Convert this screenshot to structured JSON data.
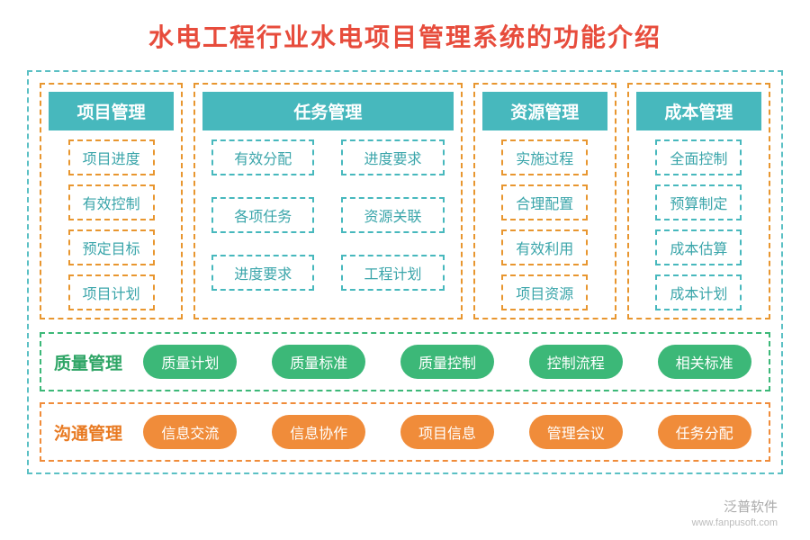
{
  "title": "水电工程行业水电项目管理系统的功能介绍",
  "title_color": "#e74c3c",
  "outer_border_color": "#5bc0c4",
  "columns": [
    {
      "header": "项目管理",
      "border_color": "#e8962f",
      "header_bg": "#47b8bd",
      "item_border": "#e8962f",
      "item_color": "#3aa5aa",
      "width": "narrow",
      "layout": "list",
      "items": [
        "项目进度",
        "有效控制",
        "预定目标",
        "项目计划"
      ]
    },
    {
      "header": "任务管理",
      "border_color": "#e8962f",
      "header_bg": "#47b8bd",
      "item_border": "#47b8bd",
      "item_color": "#3aa5aa",
      "width": "wide",
      "layout": "grid",
      "items": [
        "有效分配",
        "进度要求",
        "各项任务",
        "资源关联",
        "进度要求",
        "工程计划"
      ]
    },
    {
      "header": "资源管理",
      "border_color": "#e8962f",
      "header_bg": "#47b8bd",
      "item_border": "#e8962f",
      "item_color": "#3aa5aa",
      "width": "narrow",
      "layout": "list",
      "items": [
        "实施过程",
        "合理配置",
        "有效利用",
        "项目资源"
      ]
    },
    {
      "header": "成本管理",
      "border_color": "#e8962f",
      "header_bg": "#47b8bd",
      "item_border": "#47b8bd",
      "item_color": "#3aa5aa",
      "width": "narrow",
      "layout": "list",
      "items": [
        "全面控制",
        "预算制定",
        "成本估算",
        "成本计划"
      ]
    }
  ],
  "rows": [
    {
      "label": "质量管理",
      "border_color": "#3cb878",
      "label_color": "#2fa566",
      "pill_bg": "#3cb878",
      "pills": [
        "质量计划",
        "质量标准",
        "质量控制",
        "控制流程",
        "相关标准"
      ]
    },
    {
      "label": "沟通管理",
      "border_color": "#f08c3a",
      "label_color": "#e87a22",
      "pill_bg": "#f08c3a",
      "pills": [
        "信息交流",
        "信息协作",
        "项目信息",
        "管理会议",
        "任务分配"
      ]
    }
  ],
  "watermark": {
    "brand": "泛普软件",
    "url": "www.fanpusoft.com"
  }
}
